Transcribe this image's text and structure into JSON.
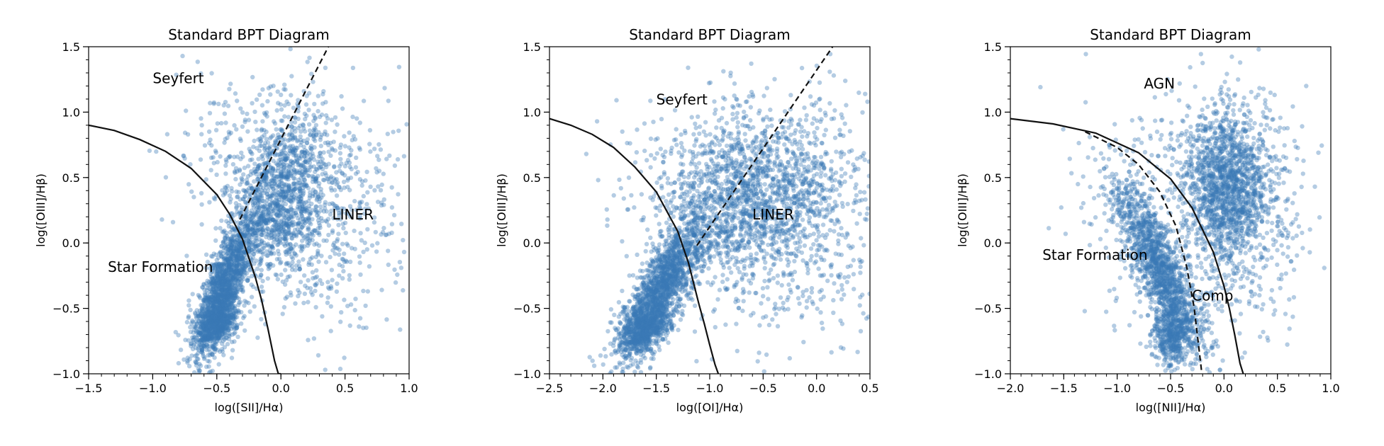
{
  "chart_data": [
    {
      "type": "scatter",
      "title": "Standard BPT Diagram",
      "xlabel": "log([SII]/Hα)",
      "ylabel": "log([OIII]/Hβ)",
      "xlim": [
        -1.5,
        1.0
      ],
      "ylim": [
        -1.0,
        1.5
      ],
      "xticks": [
        "−1.5",
        "−1.0",
        "−0.5",
        "0.0",
        "0.5",
        "1.0"
      ],
      "xtick_values": [
        -1.5,
        -1.0,
        -0.5,
        0.0,
        0.5,
        1.0
      ],
      "yticks": [
        "−1.0",
        "−0.5",
        "0.0",
        "0.5",
        "1.0",
        "1.5"
      ],
      "ytick_values": [
        -1.0,
        -0.5,
        0.0,
        0.5,
        1.0,
        1.5
      ],
      "point_color": "#3a78b5",
      "annotations": [
        {
          "text": "Seyfert",
          "x": -1.0,
          "y": 1.22
        },
        {
          "text": "LINER",
          "x": 0.4,
          "y": 0.18
        },
        {
          "text": "Star Formation",
          "x": -1.35,
          "y": -0.22
        }
      ],
      "clusters": [
        {
          "cx": -0.45,
          "cy": -0.35,
          "sx": 0.12,
          "sy": 0.28,
          "rho": 0.75,
          "n": 1500
        },
        {
          "cx": -0.5,
          "cy": -0.62,
          "sx": 0.08,
          "sy": 0.08,
          "rho": 0.3,
          "n": 500
        },
        {
          "cx": 0.0,
          "cy": 0.35,
          "sx": 0.17,
          "sy": 0.3,
          "rho": 0.3,
          "n": 1100
        },
        {
          "cx": 0.35,
          "cy": 0.25,
          "sx": 0.3,
          "sy": 0.45,
          "rho": 0.0,
          "n": 550
        },
        {
          "cx": -0.3,
          "cy": 0.6,
          "sx": 0.3,
          "sy": 0.35,
          "rho": 0.0,
          "n": 200
        }
      ],
      "lines": [
        {
          "style": "solid",
          "x": [
            -1.5,
            -1.3,
            -1.1,
            -0.9,
            -0.7,
            -0.5,
            -0.4,
            -0.3,
            -0.2,
            -0.15,
            -0.1,
            -0.05,
            -0.02,
            0.0
          ],
          "y": [
            0.9,
            0.86,
            0.79,
            0.7,
            0.57,
            0.37,
            0.22,
            0.03,
            -0.26,
            -0.44,
            -0.66,
            -0.9,
            -1.0,
            -1.0
          ]
        },
        {
          "style": "dashed",
          "x": [
            -0.32,
            0.37
          ],
          "y": [
            0.18,
            1.5
          ]
        }
      ]
    },
    {
      "type": "scatter",
      "title": "Standard BPT Diagram",
      "xlabel": "log([OI]/Hα)",
      "ylabel": "log([OIII]/Hβ)",
      "xlim": [
        -2.5,
        0.5
      ],
      "ylim": [
        -1.0,
        1.5
      ],
      "xticks": [
        "−2.5",
        "−2.0",
        "−1.5",
        "−1.0",
        "−0.5",
        "0.0",
        "0.5"
      ],
      "xtick_values": [
        -2.5,
        -2.0,
        -1.5,
        -1.0,
        -0.5,
        0.0,
        0.5
      ],
      "yticks": [
        "−1.0",
        "−0.5",
        "0.0",
        "0.5",
        "1.0",
        "1.5"
      ],
      "ytick_values": [
        -1.0,
        -0.5,
        0.0,
        0.5,
        1.0,
        1.5
      ],
      "point_color": "#3a78b5",
      "annotations": [
        {
          "text": "Seyfert",
          "x": -1.5,
          "y": 1.06
        },
        {
          "text": "LINER",
          "x": -0.6,
          "y": 0.18
        }
      ],
      "clusters": [
        {
          "cx": -1.45,
          "cy": -0.35,
          "sx": 0.2,
          "sy": 0.28,
          "rho": 0.8,
          "n": 1600
        },
        {
          "cx": -1.6,
          "cy": -0.65,
          "sx": 0.12,
          "sy": 0.08,
          "rho": 0.3,
          "n": 500
        },
        {
          "cx": -0.6,
          "cy": 0.35,
          "sx": 0.42,
          "sy": 0.3,
          "rho": 0.2,
          "n": 1300
        },
        {
          "cx": -0.2,
          "cy": 0.15,
          "sx": 0.45,
          "sy": 0.5,
          "rho": 0.0,
          "n": 600
        },
        {
          "cx": -1.0,
          "cy": 0.6,
          "sx": 0.45,
          "sy": 0.3,
          "rho": 0.1,
          "n": 250
        }
      ],
      "lines": [
        {
          "style": "solid",
          "x": [
            -2.5,
            -2.3,
            -2.1,
            -1.9,
            -1.7,
            -1.5,
            -1.3,
            -1.2,
            -1.1,
            -1.05,
            -1.0,
            -0.95,
            -0.92
          ],
          "y": [
            0.95,
            0.9,
            0.83,
            0.73,
            0.58,
            0.39,
            0.09,
            -0.15,
            -0.47,
            -0.62,
            -0.78,
            -0.93,
            -1.0
          ]
        },
        {
          "style": "dashed",
          "x": [
            -1.12,
            0.15
          ],
          "y": [
            -0.02,
            1.5
          ]
        }
      ]
    },
    {
      "type": "scatter",
      "title": "Standard BPT Diagram",
      "xlabel": "log([NII]/Hα)",
      "ylabel": "log([OIII]/Hβ)",
      "xlim": [
        -2.0,
        1.0
      ],
      "ylim": [
        -1.0,
        1.5
      ],
      "xticks": [
        "−2.0",
        "−1.5",
        "−1.0",
        "−0.5",
        "0.0",
        "0.5",
        "1.0"
      ],
      "xtick_values": [
        -2.0,
        -1.5,
        -1.0,
        -0.5,
        0.0,
        0.5,
        1.0
      ],
      "yticks": [
        "−1.0",
        "−0.5",
        "0.0",
        "0.5",
        "1.0",
        "1.5"
      ],
      "ytick_values": [
        -1.0,
        -0.5,
        0.0,
        0.5,
        1.0,
        1.5
      ],
      "point_color": "#3a78b5",
      "annotations": [
        {
          "text": "AGN",
          "x": -0.75,
          "y": 1.18
        },
        {
          "text": "Star Formation",
          "x": -1.7,
          "y": -0.13
        },
        {
          "text": "Comp",
          "x": -0.3,
          "y": -0.44
        }
      ],
      "clusters": [
        {
          "cx": -0.6,
          "cy": -0.2,
          "sx": 0.22,
          "sy": 0.35,
          "rho": -0.85,
          "n": 1400
        },
        {
          "cx": -0.5,
          "cy": -0.7,
          "sx": 0.08,
          "sy": 0.12,
          "rho": 0.0,
          "n": 400
        },
        {
          "cx": 0.0,
          "cy": 0.45,
          "sx": 0.2,
          "sy": 0.3,
          "rho": 0.0,
          "n": 1300
        },
        {
          "cx": 0.2,
          "cy": 0.2,
          "sx": 0.3,
          "sy": 0.45,
          "rho": 0.0,
          "n": 500
        },
        {
          "cx": -0.6,
          "cy": 0.3,
          "sx": 0.4,
          "sy": 0.45,
          "rho": 0.0,
          "n": 250
        }
      ],
      "lines": [
        {
          "style": "solid",
          "x": [
            -2.0,
            -1.6,
            -1.2,
            -0.8,
            -0.5,
            -0.3,
            -0.1,
            0.0,
            0.05,
            0.1,
            0.15,
            0.18
          ],
          "y": [
            0.95,
            0.91,
            0.84,
            0.69,
            0.49,
            0.27,
            -0.07,
            -0.33,
            -0.5,
            -0.7,
            -0.92,
            -1.0
          ]
        },
        {
          "style": "dashed",
          "x": [
            -1.3,
            -1.0,
            -0.8,
            -0.6,
            -0.45,
            -0.35,
            -0.28,
            -0.24,
            -0.21
          ],
          "y": [
            0.85,
            0.73,
            0.6,
            0.39,
            0.13,
            -0.18,
            -0.49,
            -0.77,
            -0.98
          ]
        }
      ]
    }
  ]
}
